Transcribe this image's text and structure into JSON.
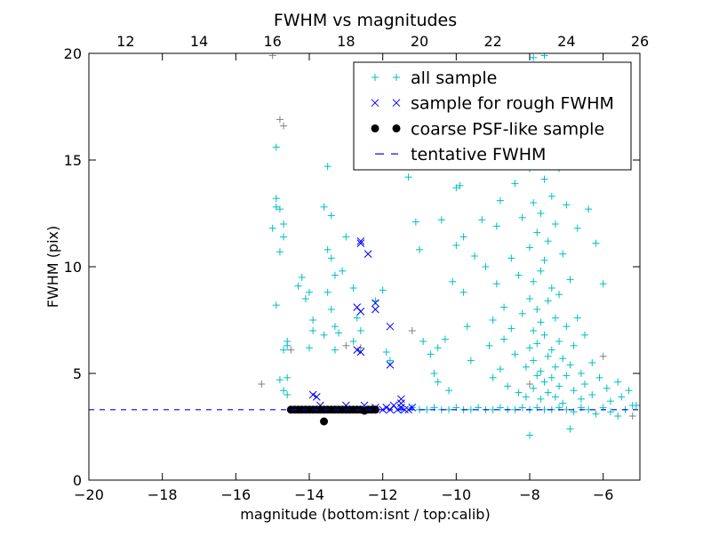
{
  "chart_data": {
    "type": "scatter",
    "title": "FWHM vs magnitudes",
    "xlabel": "magnitude (bottom:isnt / top:calib)",
    "ylabel": "FWHM (pix)",
    "xlim": [
      -20,
      -5
    ],
    "ylim": [
      0,
      20
    ],
    "top_xlim": [
      11,
      26
    ],
    "x_ticks": [
      -20,
      -18,
      -16,
      -14,
      -12,
      -10,
      -8,
      -6
    ],
    "x_tick_labels": [
      "−20",
      "−18",
      "−16",
      "−14",
      "−12",
      "−10",
      "−8",
      "−6"
    ],
    "top_ticks": [
      12,
      14,
      16,
      18,
      20,
      22,
      24,
      26
    ],
    "top_tick_labels": [
      "12",
      "14",
      "16",
      "18",
      "20",
      "22",
      "24",
      "26"
    ],
    "y_ticks": [
      0,
      5,
      10,
      15,
      20
    ],
    "y_tick_labels": [
      "0",
      "5",
      "10",
      "15",
      "20"
    ],
    "legend_position": "top-right",
    "tentative_fwhm": 3.3,
    "colors": {
      "all": "#00bfbf",
      "rough": "#0000ff",
      "psf": "#000000",
      "line": "#0000ff",
      "extra": "#808080"
    },
    "series": [
      {
        "name": "all sample",
        "marker": "plus",
        "points": [
          [
            -14.9,
            13.2
          ],
          [
            -14.9,
            12.8
          ],
          [
            -14.8,
            12.7
          ],
          [
            -14.7,
            12.0
          ],
          [
            -14.7,
            11.4
          ],
          [
            -14.8,
            10.7
          ],
          [
            -14.9,
            8.2
          ],
          [
            -15.0,
            11.8
          ],
          [
            -14.6,
            6.5
          ],
          [
            -14.6,
            6.3
          ],
          [
            -14.7,
            6.1
          ],
          [
            -14.6,
            4.8
          ],
          [
            -14.7,
            4.2
          ],
          [
            -14.8,
            4.7
          ],
          [
            -14.6,
            4.0
          ],
          [
            -14.9,
            15.6
          ],
          [
            -14.3,
            9.1
          ],
          [
            -14.2,
            9.5
          ],
          [
            -14.0,
            8.8
          ],
          [
            -14.1,
            8.5
          ],
          [
            -13.9,
            7.5
          ],
          [
            -13.9,
            7.0
          ],
          [
            -14.0,
            6.2
          ],
          [
            -13.6,
            12.8
          ],
          [
            -13.5,
            14.7
          ],
          [
            -13.4,
            12.4
          ],
          [
            -13.5,
            10.8
          ],
          [
            -13.4,
            10.4
          ],
          [
            -13.3,
            9.6
          ],
          [
            -13.5,
            8.8
          ],
          [
            -13.4,
            8.0
          ],
          [
            -13.3,
            7.2
          ],
          [
            -13.2,
            6.9
          ],
          [
            -13.3,
            6.1
          ],
          [
            -13.6,
            6.8
          ],
          [
            -13.0,
            11.4
          ],
          [
            -13.1,
            9.8
          ],
          [
            -12.8,
            9.0
          ],
          [
            -12.7,
            7.6
          ],
          [
            -12.8,
            6.5
          ],
          [
            -12.6,
            7.0
          ],
          [
            -12.2,
            8.4
          ],
          [
            -12.0,
            8.9
          ],
          [
            -11.9,
            6.0
          ],
          [
            -11.8,
            5.6
          ],
          [
            -11.3,
            14.2
          ],
          [
            -11.1,
            12.1
          ],
          [
            -11.0,
            10.8
          ],
          [
            -10.9,
            6.5
          ],
          [
            -10.7,
            5.9
          ],
          [
            -10.6,
            5.0
          ],
          [
            -10.5,
            6.2
          ],
          [
            -10.3,
            6.6
          ],
          [
            -10.5,
            4.6
          ],
          [
            -10.2,
            4.2
          ],
          [
            -10.4,
            12.2
          ],
          [
            -10.0,
            11.0
          ],
          [
            -10.1,
            9.3
          ],
          [
            -10.0,
            13.7
          ],
          [
            -9.9,
            13.8
          ],
          [
            -9.8,
            8.8
          ],
          [
            -9.7,
            7.2
          ],
          [
            -9.6,
            5.6
          ],
          [
            -9.8,
            11.4
          ],
          [
            -9.5,
            10.5
          ],
          [
            -9.2,
            10.0
          ],
          [
            -9.3,
            12.2
          ],
          [
            -9.1,
            6.3
          ],
          [
            -9.0,
            7.5
          ],
          [
            -9.0,
            4.8
          ],
          [
            -8.9,
            9.2
          ],
          [
            -8.9,
            11.9
          ],
          [
            -8.8,
            13.1
          ],
          [
            -8.8,
            5.2
          ],
          [
            -8.7,
            8.1
          ],
          [
            -8.7,
            6.6
          ],
          [
            -8.6,
            15.3
          ],
          [
            -8.6,
            4.4
          ],
          [
            -8.5,
            10.4
          ],
          [
            -8.5,
            7.1
          ],
          [
            -8.4,
            13.9
          ],
          [
            -8.4,
            5.9
          ],
          [
            -8.3,
            9.6
          ],
          [
            -8.3,
            4.1
          ],
          [
            -8.2,
            16.8
          ],
          [
            -8.2,
            12.3
          ],
          [
            -8.2,
            7.8
          ],
          [
            -8.1,
            5.3
          ],
          [
            -8.1,
            3.9
          ],
          [
            -8.0,
            18.5
          ],
          [
            -8.0,
            14.6
          ],
          [
            -8.0,
            10.9
          ],
          [
            -8.0,
            8.5
          ],
          [
            -8.0,
            6.2
          ],
          [
            -8.0,
            2.1
          ],
          [
            -7.9,
            19.8
          ],
          [
            -7.9,
            13.0
          ],
          [
            -7.9,
            9.3
          ],
          [
            -7.9,
            7.0
          ],
          [
            -7.9,
            5.6
          ],
          [
            -7.9,
            4.3
          ],
          [
            -7.8,
            17.4
          ],
          [
            -7.8,
            11.6
          ],
          [
            -7.8,
            8.0
          ],
          [
            -7.8,
            6.4
          ],
          [
            -7.8,
            4.9
          ],
          [
            -7.7,
            15.8
          ],
          [
            -7.7,
            12.5
          ],
          [
            -7.7,
            9.8
          ],
          [
            -7.7,
            7.4
          ],
          [
            -7.7,
            5.1
          ],
          [
            -7.7,
            3.8
          ],
          [
            -7.6,
            19.9
          ],
          [
            -7.6,
            14.1
          ],
          [
            -7.6,
            10.3
          ],
          [
            -7.6,
            6.8
          ],
          [
            -7.6,
            4.6
          ],
          [
            -7.5,
            16.3
          ],
          [
            -7.5,
            11.2
          ],
          [
            -7.5,
            8.4
          ],
          [
            -7.5,
            5.8
          ],
          [
            -7.5,
            4.1
          ],
          [
            -7.4,
            13.3
          ],
          [
            -7.4,
            9.0
          ],
          [
            -7.4,
            6.1
          ],
          [
            -7.4,
            4.8
          ],
          [
            -7.3,
            12.0
          ],
          [
            -7.3,
            7.6
          ],
          [
            -7.3,
            5.3
          ],
          [
            -7.3,
            3.9
          ],
          [
            -7.2,
            14.6
          ],
          [
            -7.2,
            8.7
          ],
          [
            -7.2,
            6.5
          ],
          [
            -7.2,
            4.4
          ],
          [
            -7.1,
            10.6
          ],
          [
            -7.1,
            5.7
          ],
          [
            -7.1,
            3.6
          ],
          [
            -7.0,
            12.9
          ],
          [
            -7.0,
            7.2
          ],
          [
            -7.0,
            4.9
          ],
          [
            -6.9,
            9.4
          ],
          [
            -6.9,
            5.4
          ],
          [
            -6.9,
            2.4
          ],
          [
            -6.8,
            6.3
          ],
          [
            -6.8,
            4.2
          ],
          [
            -6.7,
            11.8
          ],
          [
            -6.7,
            7.6
          ],
          [
            -6.6,
            5.0
          ],
          [
            -6.6,
            3.8
          ],
          [
            -6.5,
            6.8
          ],
          [
            -6.5,
            4.5
          ],
          [
            -6.4,
            12.7
          ],
          [
            -6.3,
            5.5
          ],
          [
            -6.3,
            4.0
          ],
          [
            -6.2,
            11.1
          ],
          [
            -6.1,
            4.8
          ],
          [
            -6.0,
            9.2
          ],
          [
            -5.9,
            4.3
          ],
          [
            -5.8,
            3.7
          ],
          [
            -5.6,
            4.6
          ],
          [
            -5.5,
            3.9
          ],
          [
            -5.3,
            4.2
          ],
          [
            -5.1,
            3.5
          ],
          [
            -11.5,
            3.3
          ],
          [
            -11.2,
            3.4
          ],
          [
            -11.0,
            3.3
          ],
          [
            -10.8,
            3.3
          ],
          [
            -10.6,
            3.4
          ],
          [
            -10.4,
            3.3
          ],
          [
            -10.2,
            3.3
          ],
          [
            -10.0,
            3.4
          ],
          [
            -9.8,
            3.3
          ],
          [
            -9.6,
            3.3
          ],
          [
            -9.4,
            3.4
          ],
          [
            -9.2,
            3.3
          ],
          [
            -9.0,
            3.3
          ],
          [
            -8.8,
            3.4
          ],
          [
            -8.6,
            3.3
          ],
          [
            -8.4,
            3.3
          ],
          [
            -8.2,
            3.4
          ],
          [
            -8.0,
            3.3
          ],
          [
            -7.8,
            3.4
          ],
          [
            -7.6,
            3.3
          ],
          [
            -7.4,
            3.3
          ],
          [
            -7.2,
            3.4
          ],
          [
            -7.0,
            3.3
          ],
          [
            -6.8,
            3.2
          ],
          [
            -6.6,
            3.4
          ],
          [
            -6.4,
            3.3
          ],
          [
            -6.2,
            3.1
          ],
          [
            -6.0,
            3.4
          ],
          [
            -5.8,
            3.2
          ],
          [
            -5.6,
            3.0
          ],
          [
            -5.4,
            3.3
          ],
          [
            -5.2,
            3.5
          ]
        ]
      },
      {
        "name": "",
        "marker": "plus",
        "key": "extra",
        "points": [
          [
            -14.8,
            16.9
          ],
          [
            -14.7,
            16.6
          ],
          [
            -15.0,
            19.9
          ],
          [
            -14.5,
            6.1
          ],
          [
            -13.0,
            6.3
          ],
          [
            -12.6,
            6.2
          ],
          [
            -11.2,
            7.0
          ],
          [
            -8.0,
            4.5
          ],
          [
            -6.0,
            5.8
          ],
          [
            -5.2,
            3.0
          ],
          [
            -15.3,
            4.5
          ]
        ]
      },
      {
        "name": "sample for rough FWHM",
        "marker": "x",
        "points": [
          [
            -13.9,
            4.0
          ],
          [
            -13.8,
            3.9
          ],
          [
            -12.6,
            11.2
          ],
          [
            -12.6,
            11.1
          ],
          [
            -12.4,
            10.6
          ],
          [
            -12.7,
            8.1
          ],
          [
            -12.6,
            7.9
          ],
          [
            -12.2,
            8.3
          ],
          [
            -12.2,
            8.0
          ],
          [
            -12.7,
            6.1
          ],
          [
            -12.6,
            6.0
          ],
          [
            -11.8,
            7.2
          ],
          [
            -11.8,
            5.4
          ],
          [
            -11.5,
            3.8
          ],
          [
            -11.5,
            3.6
          ],
          [
            -12.5,
            3.5
          ],
          [
            -12.2,
            3.4
          ],
          [
            -12.0,
            3.3
          ],
          [
            -11.9,
            3.4
          ],
          [
            -11.8,
            3.3
          ],
          [
            -11.7,
            3.5
          ],
          [
            -11.6,
            3.3
          ],
          [
            -11.5,
            3.4
          ],
          [
            -11.4,
            3.3
          ],
          [
            -11.3,
            3.3
          ],
          [
            -11.2,
            3.4
          ],
          [
            -13.0,
            3.5
          ],
          [
            -13.7,
            3.5
          ]
        ]
      },
      {
        "name": "coarse PSF-like sample",
        "marker": "dot",
        "points": [
          [
            -14.5,
            3.3
          ],
          [
            -14.4,
            3.3
          ],
          [
            -14.3,
            3.3
          ],
          [
            -14.2,
            3.3
          ],
          [
            -14.1,
            3.3
          ],
          [
            -14.0,
            3.3
          ],
          [
            -13.9,
            3.3
          ],
          [
            -13.8,
            3.3
          ],
          [
            -13.7,
            3.3
          ],
          [
            -13.6,
            3.3
          ],
          [
            -13.5,
            3.3
          ],
          [
            -13.4,
            3.3
          ],
          [
            -13.3,
            3.3
          ],
          [
            -13.2,
            3.3
          ],
          [
            -13.1,
            3.3
          ],
          [
            -13.0,
            3.3
          ],
          [
            -12.9,
            3.3
          ],
          [
            -12.8,
            3.3
          ],
          [
            -12.7,
            3.3
          ],
          [
            -12.6,
            3.3
          ],
          [
            -12.5,
            3.25
          ],
          [
            -12.4,
            3.3
          ],
          [
            -12.3,
            3.3
          ],
          [
            -12.2,
            3.3
          ],
          [
            -13.6,
            2.75
          ]
        ]
      }
    ],
    "legend": [
      {
        "label": "all sample",
        "marker": "plus",
        "key": "all"
      },
      {
        "label": "sample for rough FWHM",
        "marker": "x",
        "key": "rough"
      },
      {
        "label": "coarse PSF-like sample",
        "marker": "dot",
        "key": "psf"
      },
      {
        "label": "tentative FWHM",
        "marker": "dash",
        "key": "line"
      }
    ]
  }
}
